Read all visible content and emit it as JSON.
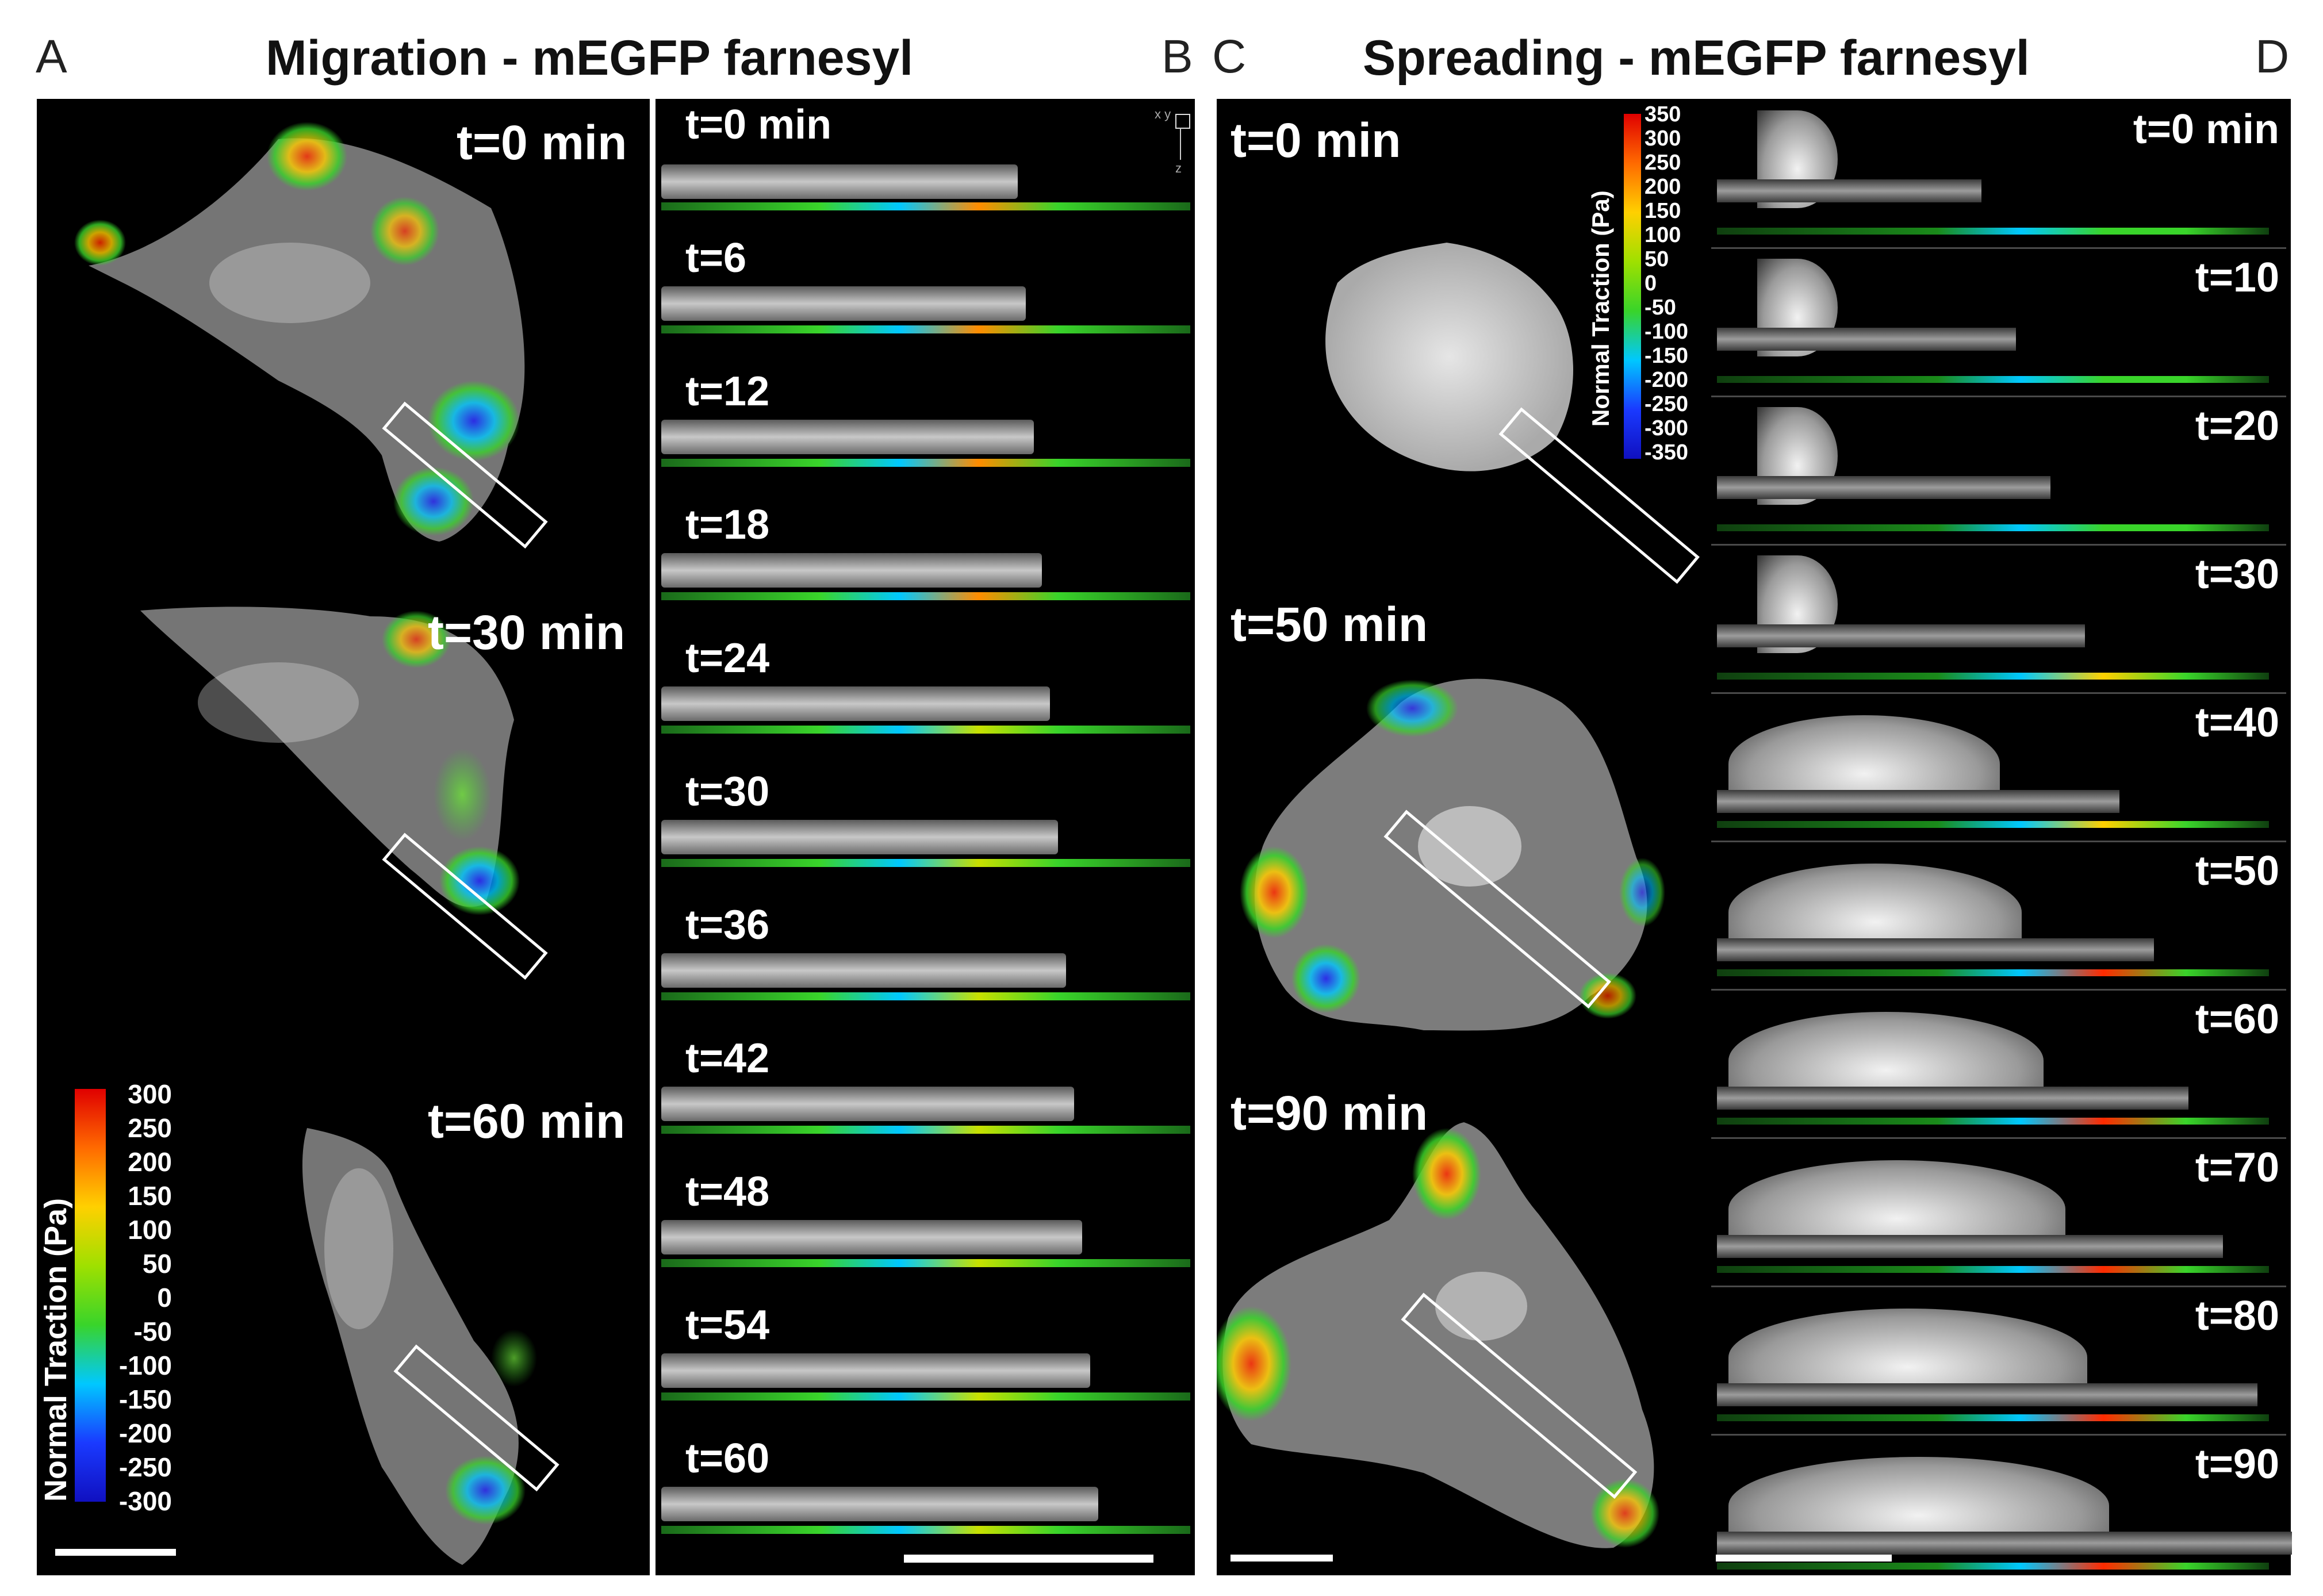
{
  "panels": {
    "A": {
      "letter": "A"
    },
    "B": {
      "letter": "B"
    },
    "C": {
      "letter": "C"
    },
    "D": {
      "letter": "D"
    }
  },
  "titles": {
    "left": "Migration - mEGFP farnesyl",
    "right": "Spreading - mEGFP farnesyl"
  },
  "migration_cells": [
    "t=0 min",
    "t=30 min",
    "t=60 min"
  ],
  "migration_profiles": [
    "t=0 min",
    "t=6",
    "t=12",
    "t=18",
    "t=24",
    "t=30",
    "t=36",
    "t=42",
    "t=48",
    "t=54",
    "t=60"
  ],
  "spreading_cells": [
    "t=0 min",
    "t=50 min",
    "t=90 min"
  ],
  "spreading_profiles": [
    "t=0 min",
    "t=10",
    "t=20",
    "t=30",
    "t=40",
    "t=50",
    "t=60",
    "t=70",
    "t=80",
    "t=90"
  ],
  "colorbar_left": {
    "title": "Normal Traction (Pa)",
    "ticks": [
      "300",
      "250",
      "200",
      "150",
      "100",
      "50",
      "0",
      "-50",
      "-100",
      "-150",
      "-200",
      "-250",
      "-300"
    ]
  },
  "colorbar_right": {
    "title": "Normal Traction (Pa)",
    "ticks": [
      "350",
      "300",
      "250",
      "200",
      "150",
      "100",
      "50",
      "0",
      "-50",
      "-100",
      "-150",
      "-200",
      "-250",
      "-300",
      "-350"
    ]
  },
  "axes_glyph": {
    "x": "x",
    "y": "y",
    "z": "z"
  },
  "colors": {
    "background": "#000000",
    "jet_high": "#ff2a00",
    "jet_mid": "#39d42a",
    "jet_low": "#1a1aff"
  }
}
